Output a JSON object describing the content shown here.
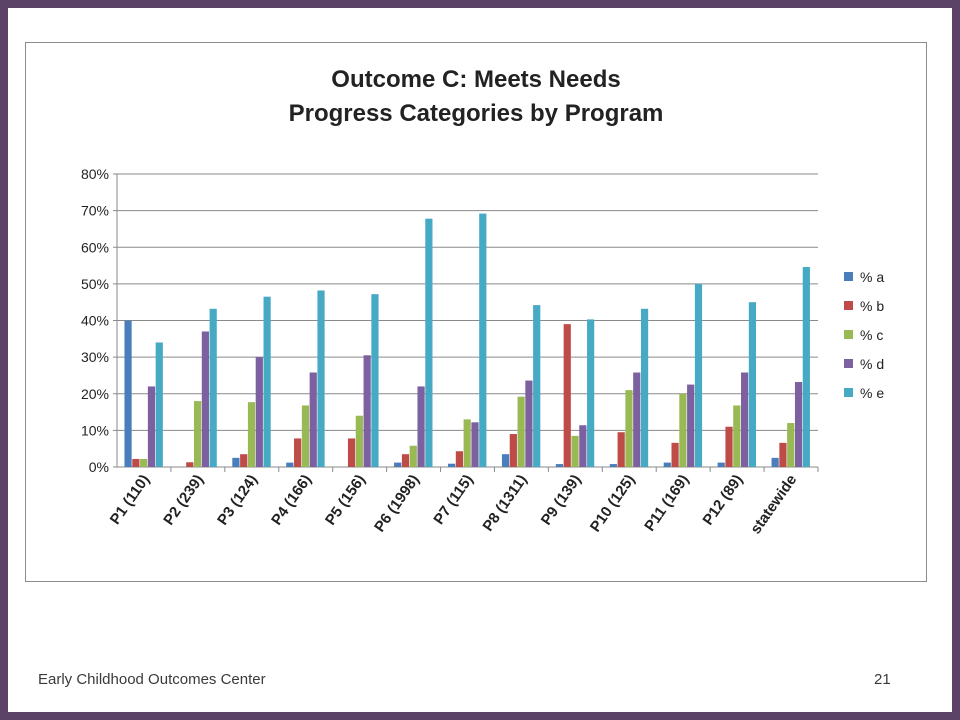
{
  "footer": {
    "left": "Early Childhood Outcomes Center",
    "page_number": "21"
  },
  "chart_data": {
    "type": "bar",
    "title": "Outcome C: Meets Needs",
    "subtitle": "Progress Categories by Program",
    "xlabel": "",
    "ylabel": "",
    "ylim": [
      0,
      0.8
    ],
    "yticks": [
      "0%",
      "10%",
      "20%",
      "30%",
      "40%",
      "50%",
      "60%",
      "70%",
      "80%"
    ],
    "grid": true,
    "legend_position": "right",
    "categories": [
      "P1 (110)",
      "P2 (239)",
      "P3 (124)",
      "P4 (166)",
      "P5 (156)",
      "P6 (1998)",
      "P7 (115)",
      "P8 (1311)",
      "P9 (139)",
      "P10 (125)",
      "P11 (169)",
      "P12 (89)",
      "statewide"
    ],
    "series": [
      {
        "name": "% a",
        "color": "#4a7ebb",
        "values": [
          0.4,
          0.0,
          0.025,
          0.012,
          0.0,
          0.012,
          0.009,
          0.035,
          0.008,
          0.008,
          0.012,
          0.012,
          0.025
        ]
      },
      {
        "name": "% b",
        "color": "#be4b48",
        "values": [
          0.022,
          0.013,
          0.035,
          0.078,
          0.078,
          0.035,
          0.043,
          0.09,
          0.39,
          0.095,
          0.066,
          0.11,
          0.066
        ]
      },
      {
        "name": "% c",
        "color": "#98b954",
        "values": [
          0.022,
          0.18,
          0.177,
          0.168,
          0.14,
          0.058,
          0.13,
          0.192,
          0.085,
          0.21,
          0.2,
          0.168,
          0.12
        ]
      },
      {
        "name": "% d",
        "color": "#7d60a0",
        "values": [
          0.22,
          0.37,
          0.3,
          0.258,
          0.305,
          0.22,
          0.122,
          0.236,
          0.114,
          0.258,
          0.225,
          0.258,
          0.232
        ]
      },
      {
        "name": "% e",
        "color": "#46aac5",
        "values": [
          0.34,
          0.432,
          0.465,
          0.482,
          0.472,
          0.678,
          0.692,
          0.442,
          0.403,
          0.432,
          0.5,
          0.45,
          0.546
        ]
      }
    ]
  }
}
